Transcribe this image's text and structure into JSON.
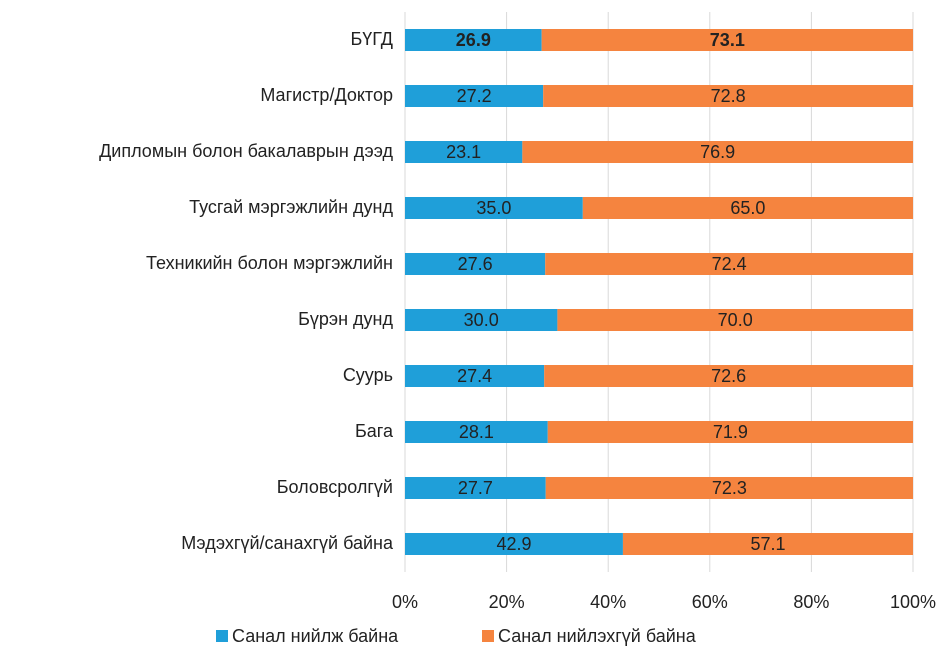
{
  "chart_data": {
    "type": "stacked_barh",
    "categories": [
      "БҮГД",
      "Магистр/Доктор",
      "Дипломын болон бакалаврын  дээд",
      "Тусгай мэргэжлийн дунд",
      "Техникийн болон мэргэжлийн",
      "Бүрэн дунд",
      "Суурь",
      "Бага",
      "Боловсролгүй",
      "Мэдэхгүй/санахгүй байна"
    ],
    "series": [
      {
        "name": "Санал нийлж байна",
        "color": "#1f9fd9",
        "values": [
          26.9,
          27.2,
          23.1,
          35.0,
          27.6,
          30.0,
          27.4,
          28.1,
          27.7,
          42.9
        ],
        "value_labels": [
          "26.9",
          "27.2",
          "23.1",
          "35.0",
          "27.6",
          "30.0",
          "27.4",
          "28.1",
          "27.7",
          "42.9"
        ]
      },
      {
        "name": "Санал нийлэхгүй байна",
        "color": "#f5843f",
        "values": [
          73.1,
          72.8,
          76.9,
          65.0,
          72.4,
          70.0,
          72.6,
          71.9,
          72.3,
          57.1
        ],
        "value_labels": [
          "73.1",
          "72.8",
          "76.9",
          "65.0",
          "72.4",
          "70.0",
          "72.6",
          "71.9",
          "72.3",
          "57.1"
        ]
      }
    ],
    "xlim": [
      0,
      100
    ],
    "xticks": [
      {
        "value": 0,
        "label": "0%"
      },
      {
        "value": 20,
        "label": "20%"
      },
      {
        "value": 40,
        "label": "40%"
      },
      {
        "value": 60,
        "label": "60%"
      },
      {
        "value": 80,
        "label": "80%"
      },
      {
        "value": 100,
        "label": "100%"
      }
    ],
    "grid": true,
    "legend": "bottom"
  }
}
